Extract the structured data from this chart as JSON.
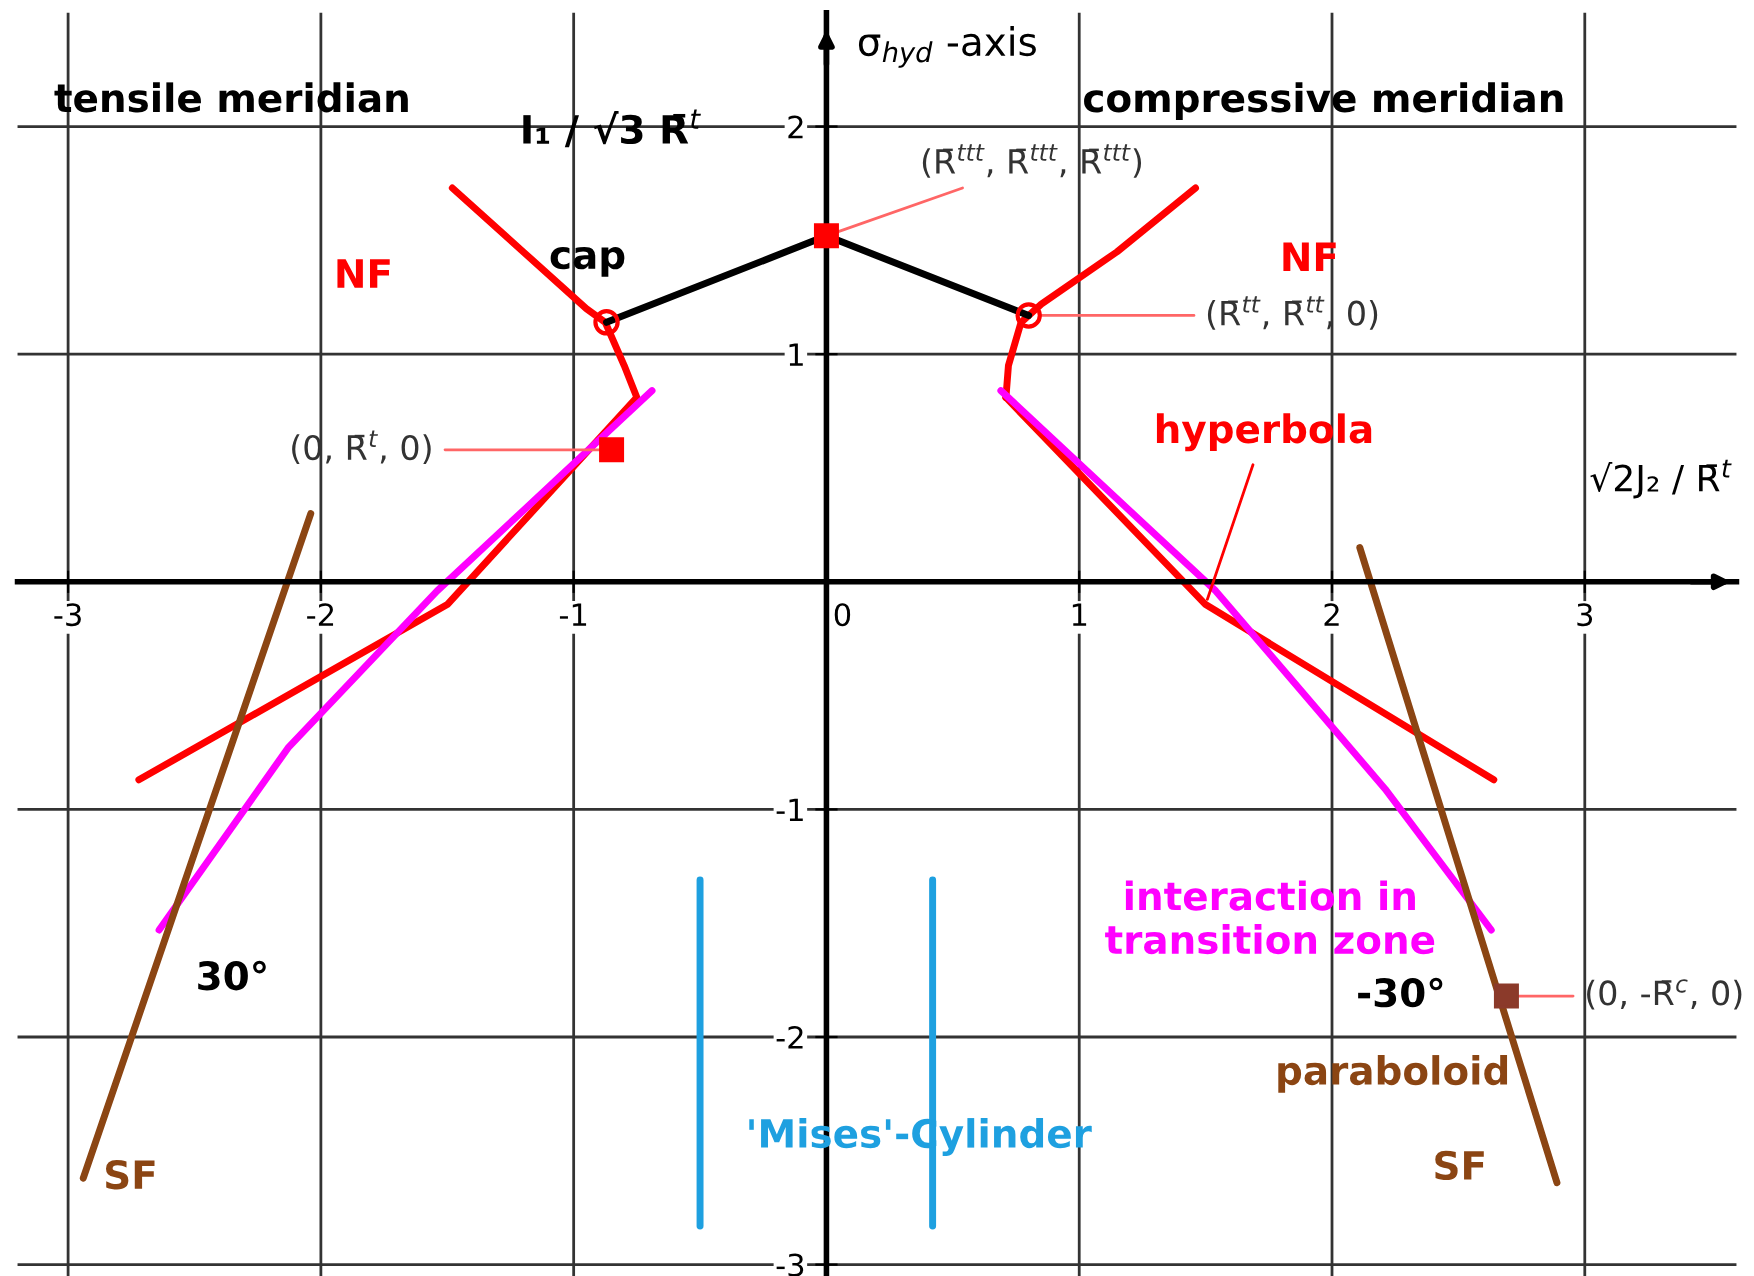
{
  "chart_data": {
    "type": "line",
    "ylabel": "σ$_{hyd}$ -axis",
    "xlabel": "√2J₂ / R̄$^{t}$",
    "xlim": [
      -3.2,
      3.6
    ],
    "ylim": [
      -3.05,
      2.5
    ],
    "xticks": [
      -3,
      -2,
      -1,
      0,
      1,
      2,
      3
    ],
    "yticks": [
      -3,
      -2,
      -1,
      1,
      2
    ],
    "grid": true,
    "line_style": "solid",
    "series": [
      {
        "name": "NF",
        "color": "#ff0000",
        "x": [
          -1.48,
          -1.2,
          -0.95,
          -0.875,
          -0.8,
          -0.75,
          -1.5,
          -2.72
        ],
        "values": [
          1.73,
          1.45,
          1.2,
          1.14,
          0.95,
          0.81,
          -0.1,
          -0.87
        ]
      },
      {
        "name": "NF",
        "color": "#ff0000",
        "x": [
          1.46,
          1.15,
          0.85,
          0.77,
          0.72,
          0.71
        ],
        "values": [
          1.73,
          1.45,
          1.22,
          1.14,
          0.95,
          0.81
        ]
      },
      {
        "name": "hyperbola",
        "color": "#ff0000",
        "x": [
          0.71,
          1.5,
          2.64
        ],
        "values": [
          0.81,
          -0.1,
          -0.87
        ]
      },
      {
        "color": "#ff00ff",
        "x": [
          -0.69,
          -1.54,
          -2.13,
          -2.64
        ],
        "values": [
          0.84,
          -0.04,
          -0.73,
          -1.53
        ]
      },
      {
        "name": "interaction in\ntransition zone",
        "color": "#ff00ff",
        "x": [
          0.69,
          1.54,
          2.21,
          2.63
        ],
        "values": [
          0.84,
          -0.04,
          -0.91,
          -1.53
        ]
      },
      {
        "name": "SF",
        "color": "#8b4513",
        "x": [
          -2.04,
          -2.94
        ],
        "values": [
          0.3,
          -2.62
        ]
      },
      {
        "name": "SF",
        "color": "#8b4513",
        "x": [
          2.11,
          2.89
        ],
        "values": [
          0.15,
          -2.64
        ]
      },
      {
        "name": "cap",
        "color": "#000000",
        "x": [
          -0.87,
          0,
          0.8
        ],
        "values": [
          1.14,
          1.52,
          1.17
        ]
      },
      {
        "color": "#1ea0e0",
        "x": [
          -0.5,
          -0.5
        ],
        "values": [
          -1.31,
          -2.83
        ]
      },
      {
        "name": "'Mises'-Cylinder",
        "color": "#1ea0e0",
        "x": [
          0.42,
          0.42
        ],
        "values": [
          -1.31,
          -2.83
        ]
      },
      {
        "type": "scatter",
        "marker": "square",
        "color": "#ff0000",
        "x": [
          0,
          -0.85
        ],
        "values": [
          1.52,
          0.58
        ]
      },
      {
        "type": "scatter",
        "marker": "circle",
        "color": "#ff0000",
        "x": [
          -0.87,
          0.8
        ],
        "values": [
          1.14,
          1.17
        ]
      },
      {
        "type": "scatter",
        "marker": "square",
        "color": "#8b3a2a",
        "x": [
          2.69
        ],
        "values": [
          -1.82
        ]
      }
    ],
    "annotations": [
      "tensile meridian",
      "compressive meridian",
      "I₁ / √3 R̄$^{t}$",
      "30°",
      "paraboloid",
      {
        "text": "(R̄$^{ttt}$, R̄$^{ttt}$, R̄$^{ttt}$)",
        "x": 0,
        "y": 1.52
      },
      {
        "text": "(R̄$^{tt}$, R̄$^{tt}$, 0)",
        "x": 0.8,
        "y": 1.17
      },
      {
        "text": "(0, R̄$^{t}$, 0)",
        "x": -0.85,
        "y": 0.58
      },
      {
        "text": "-30°",
        "x": 2.69,
        "y": -1.82
      },
      {
        "text": "(0, -R̄$^{c}$, 0)",
        "x": 2.69,
        "y": -1.82
      }
    ]
  }
}
